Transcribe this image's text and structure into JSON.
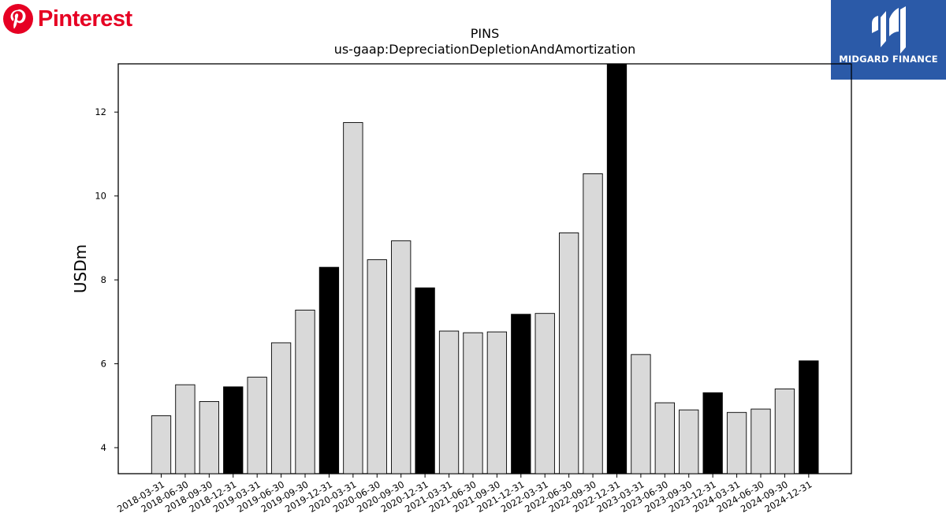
{
  "brand": {
    "name": "Pinterest",
    "color": "#e60023",
    "icon": "pinterest-icon"
  },
  "badge": {
    "label": "MIDGARD FINANCE",
    "color": "#2b5aa8",
    "icon": "midgard-logo-icon"
  },
  "chart_data": {
    "type": "bar",
    "title": "PINS",
    "subtitle": "us-gaap:DepreciationDepletionAndAmortization",
    "xlabel": "",
    "ylabel": "USDm",
    "ylim": [
      3.38,
      13.15
    ],
    "yticks": [
      4,
      6,
      8,
      10,
      12
    ],
    "grid": false,
    "colors": {
      "quarter": "#d9d9d9",
      "year_end": "#000000",
      "edge": "#000000"
    },
    "categories": [
      "2018-03-31",
      "2018-06-30",
      "2018-09-30",
      "2018-12-31",
      "2019-03-31",
      "2019-06-30",
      "2019-09-30",
      "2019-12-31",
      "2020-03-31",
      "2020-06-30",
      "2020-09-30",
      "2020-12-31",
      "2021-03-31",
      "2021-06-30",
      "2021-09-30",
      "2021-12-31",
      "2022-03-31",
      "2022-06-30",
      "2022-09-30",
      "2022-12-31",
      "2023-03-31",
      "2023-06-30",
      "2023-09-30",
      "2023-12-31",
      "2024-03-31",
      "2024-06-30",
      "2024-09-30",
      "2024-12-31"
    ],
    "values": [
      4.76,
      5.5,
      5.1,
      5.45,
      5.68,
      6.5,
      7.28,
      8.3,
      11.75,
      8.48,
      8.93,
      7.81,
      6.78,
      6.74,
      6.76,
      7.18,
      7.2,
      9.12,
      10.53,
      13.15,
      6.22,
      5.07,
      4.9,
      5.31,
      4.84,
      4.92,
      5.4,
      6.07
    ],
    "highlight": [
      false,
      false,
      false,
      true,
      false,
      false,
      false,
      true,
      false,
      false,
      false,
      true,
      false,
      false,
      false,
      true,
      false,
      false,
      false,
      true,
      false,
      false,
      false,
      true,
      false,
      false,
      false,
      true
    ]
  }
}
